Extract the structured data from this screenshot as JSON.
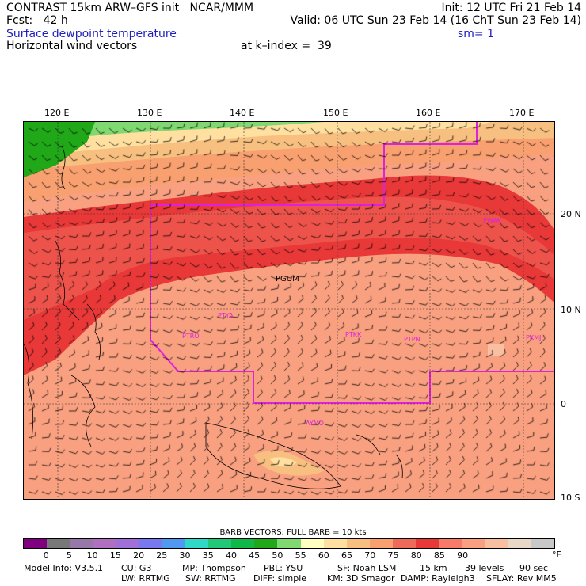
{
  "header": {
    "line1_left": "CONTRAST 15km ARW–GFS init   NCAR/MMM",
    "line1_right": "Init: 12 UTC Fri 21 Feb 14",
    "line2_left": "Fcst:   42 h",
    "line2_right": "Valid: 06 UTC Sun 23 Feb 14 (16 ChT Sun 23 Feb 14)",
    "field1": "Surface dewpoint temperature",
    "smooth": "sm= 1",
    "field2": "Horizontal wind vectors",
    "kindex": "at k–index =  39"
  },
  "map": {
    "lon_labels": [
      "120 E",
      "130 E",
      "140 E",
      "150 E",
      "160 E",
      "170 E"
    ],
    "lat_labels": [
      "20 N",
      "10 N",
      "0",
      "10 S"
    ],
    "stations": [
      "PGUM",
      "PTYA",
      "PTRO",
      "PTKK",
      "PTPN",
      "PKMJ",
      "PWAK",
      "AYMO"
    ]
  },
  "colorbar": {
    "title": "BARB VECTORS:  FULL BARB = 10 kts",
    "colors": [
      "#800080",
      "#787878",
      "#9878a8",
      "#b070c0",
      "#a070d8",
      "#7878f0",
      "#5098f0",
      "#30d8c8",
      "#20c878",
      "#10b848",
      "#20a818",
      "#80d870",
      "#ffffc0",
      "#ffe0a0",
      "#f8c080",
      "#f8a070",
      "#f06a5a",
      "#e83838",
      "#f87a68",
      "#f8a080",
      "#f8c0a0",
      "#e8d8c8",
      "#c8c8c8"
    ],
    "ticks": [
      "0",
      "5",
      "10",
      "15",
      "20",
      "25",
      "30",
      "35",
      "40",
      "45",
      "50",
      "55",
      "60",
      "65",
      "70",
      "75",
      "80",
      "85",
      "90"
    ],
    "unit": "°F"
  },
  "model_info": {
    "line1": [
      "Model Info: V3.5.1",
      "CU: G3",
      "MP: Thompson",
      "PBL: YSU",
      "SF: Noah LSM",
      "15 km",
      "39 levels",
      "90 sec"
    ],
    "line2": [
      "LW: RRTMG",
      "SW: RRTMG",
      "DIFF: simple",
      "KM: 3D Smagor",
      "DAMP: Rayleigh3",
      "SFLAY: Rev MM5"
    ]
  }
}
